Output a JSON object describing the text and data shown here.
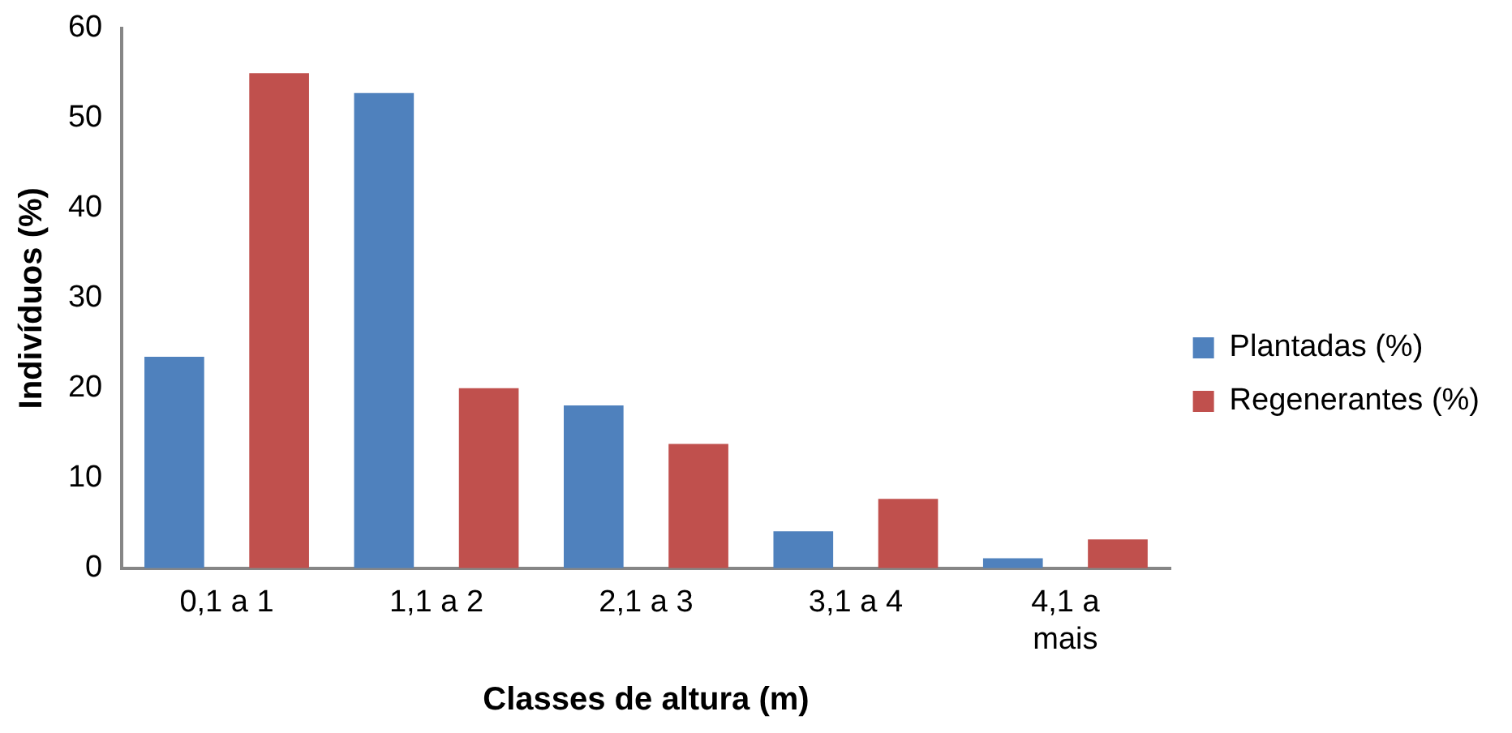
{
  "chart_data": {
    "type": "bar",
    "xlabel": "Classes de altura (m)",
    "ylabel": "Indivíduos (%)",
    "categories": [
      "0,1 a 1",
      "1,1 a 2",
      "2,1 a 3",
      "3,1 a 4",
      "4,1 a mais"
    ],
    "series": [
      {
        "name": "Plantadas (%)",
        "color": "#4f81bd",
        "values": [
          23.5,
          52.8,
          18.1,
          4.1,
          1.1
        ]
      },
      {
        "name": "Regenerantes (%)",
        "color": "#c0504d",
        "values": [
          55.0,
          20.0,
          13.8,
          7.7,
          3.2
        ]
      }
    ],
    "ylim": [
      0,
      60
    ],
    "yticks": [
      0,
      10,
      20,
      30,
      40,
      50,
      60
    ],
    "grid": false,
    "legend": "right"
  }
}
